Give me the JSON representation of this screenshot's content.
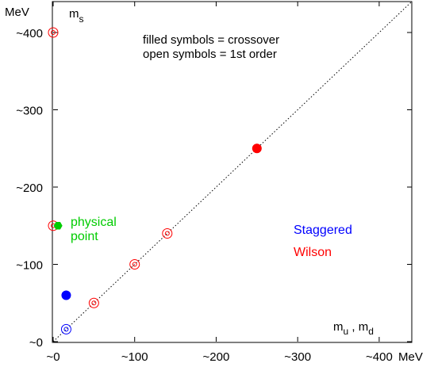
{
  "chart_data": {
    "type": "scatter",
    "xlim": [
      0,
      440
    ],
    "ylim": [
      0,
      440
    ],
    "x_ticks": [
      {
        "value": 0,
        "label": "~0"
      },
      {
        "value": 100,
        "label": "~100"
      },
      {
        "value": 200,
        "label": "~200"
      },
      {
        "value": 300,
        "label": "~300"
      },
      {
        "value": 400,
        "label": "~400"
      }
    ],
    "y_ticks": [
      {
        "value": 0,
        "label": "~0"
      },
      {
        "value": 100,
        "label": "~100"
      },
      {
        "value": 200,
        "label": "~200"
      },
      {
        "value": 300,
        "label": "~300"
      },
      {
        "value": 400,
        "label": "~400"
      }
    ],
    "x_unit": "MeV",
    "y_unit": "MeV",
    "xlabel": {
      "main": "m",
      "sub_u": "u",
      "sep": " , m",
      "sub_d": "d"
    },
    "ylabel": {
      "main": "m",
      "sub": "s"
    },
    "diagonal": true,
    "grid": false,
    "annotations": {
      "filled": "filled symbols = crossover",
      "open": "open symbols = 1st order"
    },
    "legend": [
      {
        "name": "Staggered",
        "color": "#0000ff"
      },
      {
        "name": "Wilson",
        "color": "#ff0000"
      }
    ],
    "physical_point": {
      "label_line1": "physical",
      "label_line2": "point",
      "x": 6,
      "y": 150,
      "color": "#00cc00"
    },
    "series": [
      {
        "name": "Staggered",
        "color": "#0000ff",
        "points": [
          {
            "x": 16,
            "y": 60,
            "filled": true
          },
          {
            "x": 16,
            "y": 16,
            "filled": false
          }
        ]
      },
      {
        "name": "Wilson",
        "color": "#ff0000",
        "points": [
          {
            "x": 250,
            "y": 250,
            "filled": true
          },
          {
            "x": 0,
            "y": 400,
            "filled": false
          },
          {
            "x": 0,
            "y": 150,
            "filled": false
          },
          {
            "x": 140,
            "y": 140,
            "filled": false
          },
          {
            "x": 100,
            "y": 100,
            "filled": false
          },
          {
            "x": 50,
            "y": 50,
            "filled": false
          }
        ]
      }
    ]
  }
}
